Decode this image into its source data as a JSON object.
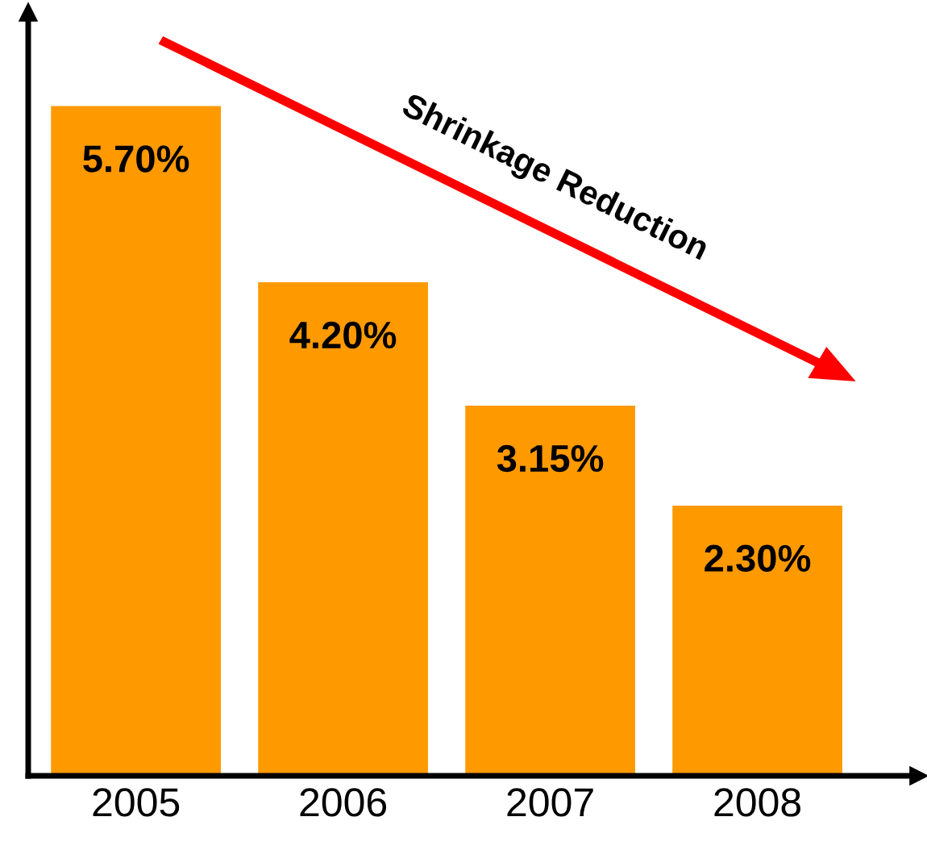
{
  "chart_data": {
    "type": "bar",
    "categories": [
      "2005",
      "2006",
      "2007",
      "2008"
    ],
    "values": [
      5.7,
      4.2,
      3.15,
      2.3
    ],
    "value_labels": [
      "5.70%",
      "4.20%",
      "3.15%",
      "2.30%"
    ],
    "color": "#ff9900",
    "ylim": [
      0,
      6.5
    ],
    "grid": false,
    "legend": false,
    "tick_labels": "x",
    "annotations": [
      "Shrinkage Reduction"
    ]
  }
}
